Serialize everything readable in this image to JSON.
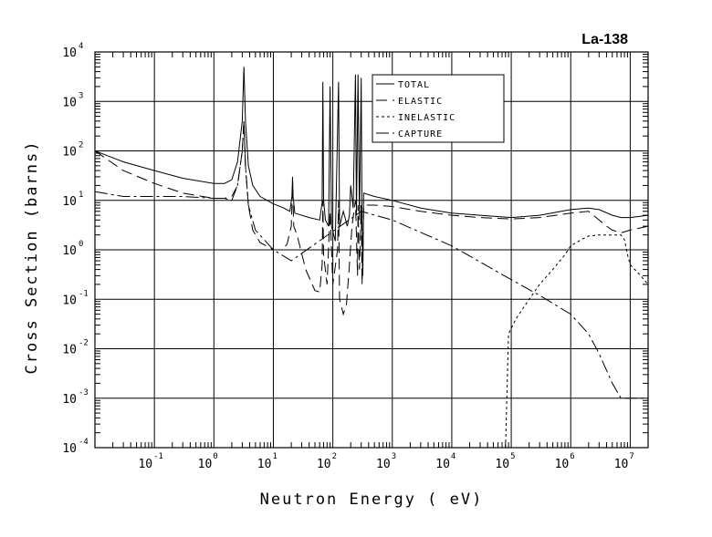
{
  "chart_data": {
    "type": "line",
    "title": "La-138",
    "xlabel": "Neutron Energy ( eV)",
    "ylabel": "Cross Section (barns)",
    "xscale": "log",
    "yscale": "log",
    "xlim": [
      0.01,
      20000000
    ],
    "ylim": [
      0.0001,
      10000
    ],
    "grid": true,
    "legend_position": "top-center",
    "x_ticks": [
      {
        "base": "10",
        "exp": "-1",
        "value": 0.1
      },
      {
        "base": "10",
        "exp": "0",
        "value": 1
      },
      {
        "base": "10",
        "exp": "1",
        "value": 10
      },
      {
        "base": "10",
        "exp": "2",
        "value": 100
      },
      {
        "base": "10",
        "exp": "3",
        "value": 1000
      },
      {
        "base": "10",
        "exp": "4",
        "value": 10000
      },
      {
        "base": "10",
        "exp": "5",
        "value": 100000
      },
      {
        "base": "10",
        "exp": "6",
        "value": 1000000
      },
      {
        "base": "10",
        "exp": "7",
        "value": 10000000
      }
    ],
    "y_ticks": [
      {
        "base": "10",
        "exp": "-4",
        "value": 0.0001
      },
      {
        "base": "10",
        "exp": "-3",
        "value": 0.001
      },
      {
        "base": "10",
        "exp": "-2",
        "value": 0.01
      },
      {
        "base": "10",
        "exp": "-1",
        "value": 0.1
      },
      {
        "base": "10",
        "exp": "0",
        "value": 1
      },
      {
        "base": "10",
        "exp": "1",
        "value": 10
      },
      {
        "base": "10",
        "exp": "2",
        "value": 100
      },
      {
        "base": "10",
        "exp": "3",
        "value": 1000
      },
      {
        "base": "10",
        "exp": "4",
        "value": 10000
      }
    ],
    "series": [
      {
        "name": "TOTAL",
        "dash": "solid",
        "points": [
          [
            0.01,
            100
          ],
          [
            0.03,
            60
          ],
          [
            0.1,
            40
          ],
          [
            0.3,
            28
          ],
          [
            1,
            22
          ],
          [
            1.5,
            22
          ],
          [
            2,
            26
          ],
          [
            2.5,
            60
          ],
          [
            3,
            400
          ],
          [
            3.2,
            5000
          ],
          [
            3.4,
            400
          ],
          [
            3.8,
            50
          ],
          [
            4.5,
            20
          ],
          [
            6,
            12
          ],
          [
            10,
            8.5
          ],
          [
            15,
            7
          ],
          [
            19,
            6
          ],
          [
            20.5,
            12
          ],
          [
            21,
            30
          ],
          [
            21.5,
            12
          ],
          [
            23,
            5.5
          ],
          [
            40,
            4.5
          ],
          [
            60,
            4
          ],
          [
            66,
            9
          ],
          [
            68,
            2500
          ],
          [
            70,
            10
          ],
          [
            75,
            4
          ],
          [
            85,
            3
          ],
          [
            90,
            2000
          ],
          [
            95,
            3
          ],
          [
            110,
            1.5
          ],
          [
            125,
            2500
          ],
          [
            130,
            3
          ],
          [
            150,
            6
          ],
          [
            175,
            3
          ],
          [
            190,
            5
          ],
          [
            200,
            20
          ],
          [
            220,
            7
          ],
          [
            240,
            3500
          ],
          [
            250,
            5
          ],
          [
            265,
            3500
          ],
          [
            280,
            4
          ],
          [
            300,
            3000
          ],
          [
            310,
            4
          ],
          [
            320,
            0.3
          ],
          [
            330,
            14
          ],
          [
            500,
            12
          ],
          [
            1000,
            10
          ],
          [
            3000,
            7
          ],
          [
            10000,
            5.5
          ],
          [
            30000,
            5
          ],
          [
            100000,
            4.5
          ],
          [
            300000,
            5
          ],
          [
            1000000,
            6.5
          ],
          [
            2000000,
            7
          ],
          [
            3000000,
            6.5
          ],
          [
            5000000,
            5
          ],
          [
            7000000,
            4.5
          ],
          [
            10000000,
            4.5
          ],
          [
            20000000,
            5
          ]
        ]
      },
      {
        "name": "ELASTIC",
        "dash": "12,6",
        "points": [
          [
            0.01,
            100
          ],
          [
            0.03,
            40
          ],
          [
            0.1,
            22
          ],
          [
            0.3,
            14
          ],
          [
            1,
            11
          ],
          [
            1.5,
            11
          ],
          [
            2,
            12
          ],
          [
            2.5,
            20
          ],
          [
            3,
            100
          ],
          [
            3.2,
            400
          ],
          [
            3.4,
            50
          ],
          [
            3.8,
            8
          ],
          [
            4.5,
            2.5
          ],
          [
            6,
            1.4
          ],
          [
            10,
            1
          ],
          [
            14,
            1
          ],
          [
            17,
            1.3
          ],
          [
            20,
            3
          ],
          [
            21,
            20
          ],
          [
            22,
            3
          ],
          [
            25,
            2
          ],
          [
            35,
            0.4
          ],
          [
            50,
            0.15
          ],
          [
            60,
            0.14
          ],
          [
            66,
            0.5
          ],
          [
            68,
            10
          ],
          [
            70,
            0.8
          ],
          [
            80,
            0.2
          ],
          [
            90,
            6
          ],
          [
            100,
            0.2
          ],
          [
            120,
            1
          ],
          [
            125,
            10
          ],
          [
            130,
            0.1
          ],
          [
            150,
            0.05
          ],
          [
            170,
            0.08
          ],
          [
            190,
            0.5
          ],
          [
            210,
            3
          ],
          [
            240,
            10
          ],
          [
            260,
            0.3
          ],
          [
            265,
            8
          ],
          [
            280,
            0.4
          ],
          [
            300,
            8
          ],
          [
            310,
            0.2
          ],
          [
            320,
            0.8
          ],
          [
            330,
            8
          ],
          [
            500,
            8
          ],
          [
            1000,
            7.5
          ],
          [
            3000,
            6
          ],
          [
            10000,
            5
          ],
          [
            30000,
            4.5
          ],
          [
            100000,
            4.2
          ],
          [
            300000,
            4.5
          ],
          [
            1000000,
            5.5
          ],
          [
            2000000,
            6
          ],
          [
            3000000,
            4
          ],
          [
            4000000,
            3
          ],
          [
            5000000,
            2.5
          ],
          [
            7000000,
            2.2
          ],
          [
            10000000,
            2.5
          ],
          [
            20000000,
            3
          ]
        ]
      },
      {
        "name": "INELASTIC",
        "dash": "3,3",
        "points": [
          [
            80000,
            0.0001
          ],
          [
            90000,
            0.02
          ],
          [
            120000,
            0.04
          ],
          [
            150000,
            0.06
          ],
          [
            200000,
            0.1
          ],
          [
            300000,
            0.2
          ],
          [
            500000,
            0.4
          ],
          [
            800000,
            0.8
          ],
          [
            1000000,
            1.2
          ],
          [
            1500000,
            1.6
          ],
          [
            2000000,
            1.9
          ],
          [
            3000000,
            2
          ],
          [
            5000000,
            2
          ],
          [
            7000000,
            2
          ],
          [
            8000000,
            1.6
          ],
          [
            9000000,
            0.8
          ],
          [
            10000000,
            0.5
          ],
          [
            15000000,
            0.3
          ],
          [
            20000000,
            0.2
          ]
        ]
      },
      {
        "name": "CAPTURE",
        "dash": "14,4,3,4",
        "points": [
          [
            0.01,
            15
          ],
          [
            0.03,
            12
          ],
          [
            0.1,
            12
          ],
          [
            0.3,
            12
          ],
          [
            1,
            11
          ],
          [
            1.5,
            11
          ],
          [
            2,
            10
          ],
          [
            2.5,
            20
          ],
          [
            3,
            100
          ],
          [
            3.2,
            400
          ],
          [
            3.4,
            50
          ],
          [
            3.8,
            8
          ],
          [
            5,
            2.5
          ],
          [
            10,
            1
          ],
          [
            20,
            0.6
          ],
          [
            300,
            6
          ],
          [
            1000,
            4
          ],
          [
            10000,
            1.2
          ],
          [
            100000,
            0.25
          ],
          [
            300000,
            0.12
          ],
          [
            1000000,
            0.05
          ],
          [
            2000000,
            0.02
          ],
          [
            3000000,
            0.008
          ],
          [
            5000000,
            0.002
          ],
          [
            7000000,
            0.001
          ],
          [
            10000000,
            0.001
          ],
          [
            20000000,
            0.001
          ]
        ]
      }
    ]
  }
}
